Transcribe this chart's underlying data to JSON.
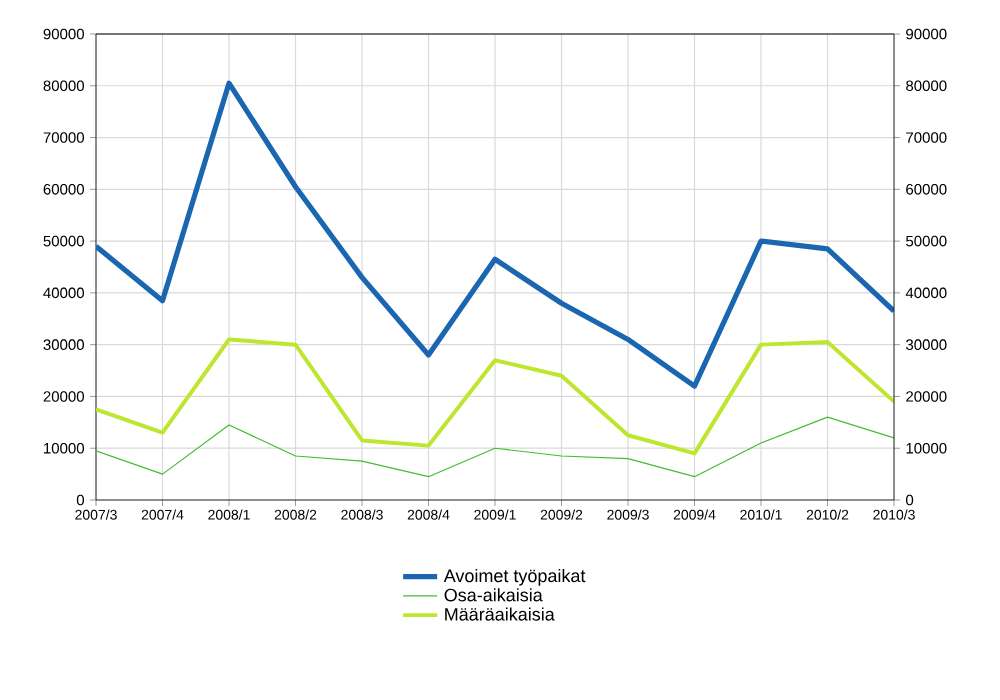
{
  "chart_data": {
    "type": "line",
    "categories": [
      "2007/3",
      "2007/4",
      "2008/1",
      "2008/2",
      "2008/3",
      "2008/4",
      "2009/1",
      "2009/2",
      "2009/3",
      "2009/4",
      "2010/1",
      "2010/2",
      "2010/3"
    ],
    "series": [
      {
        "name": "Avoimet työpaikat",
        "color": "#1a66b0",
        "values": [
          49000,
          38500,
          80500,
          60500,
          43000,
          28000,
          46500,
          38000,
          31000,
          22000,
          50000,
          48500,
          36500
        ]
      },
      {
        "name": "Osa-aikaisia",
        "color": "#44bb33",
        "values": [
          9500,
          5000,
          14500,
          8500,
          7500,
          4500,
          10000,
          8500,
          8000,
          4500,
          11000,
          16000,
          12000
        ]
      },
      {
        "name": "Määräaikaisia",
        "color": "#bfe62e",
        "values": [
          17500,
          13000,
          31000,
          30000,
          11500,
          10500,
          27000,
          24000,
          12500,
          9000,
          30000,
          30500,
          19000
        ]
      }
    ],
    "ylim": [
      0,
      90000
    ],
    "yticks": [
      0,
      10000,
      20000,
      30000,
      40000,
      50000,
      60000,
      70000,
      80000,
      90000
    ],
    "y2lim": [
      0,
      90000
    ],
    "y2ticks": [
      0,
      10000,
      20000,
      30000,
      40000,
      50000,
      60000,
      70000,
      80000,
      90000
    ],
    "grid": true,
    "legend": "bottom",
    "marker": "none",
    "line_style": "solid"
  }
}
